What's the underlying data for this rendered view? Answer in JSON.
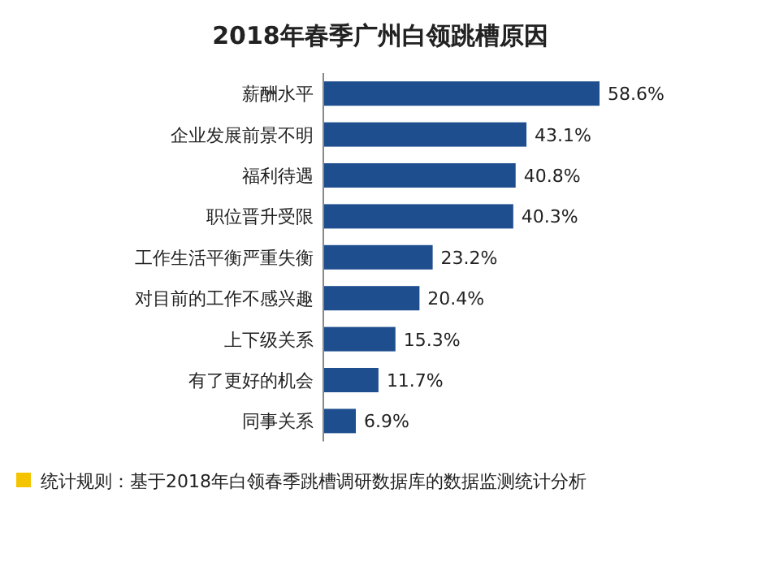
{
  "chart_data": {
    "type": "bar",
    "orientation": "horizontal",
    "title": "2018年春季广州白领跳槽原因",
    "categories": [
      "薪酬水平",
      "企业发展前景不明",
      "福利待遇",
      "职位晋升受限",
      "工作生活平衡严重失衡",
      "对目前的工作不感兴趣",
      "上下级关系",
      "有了更好的机会",
      "同事关系"
    ],
    "values": [
      58.6,
      43.1,
      40.8,
      40.3,
      23.2,
      20.4,
      15.3,
      11.7,
      6.9
    ],
    "value_labels": [
      "58.6%",
      "43.1%",
      "40.8%",
      "40.3%",
      "23.2%",
      "20.4%",
      "15.3%",
      "11.7%",
      "6.9%"
    ],
    "color": "#1f4e8f",
    "annotations": [
      "统计规则：基于2018年白领春季跳槽调研数据库的数据监测统计分析"
    ]
  }
}
